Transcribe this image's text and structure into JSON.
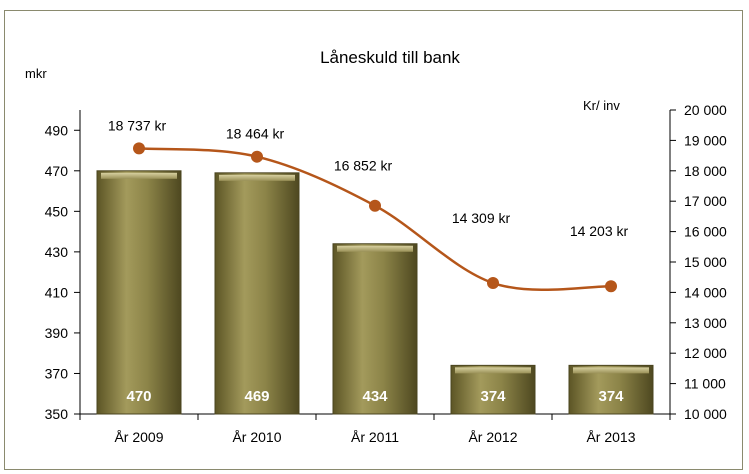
{
  "chart_data": {
    "type": "bar",
    "title": "Låneskuld till bank",
    "left_axis_unit": "mkr",
    "right_axis_unit": "Kr/ inv",
    "categories": [
      "År 2009",
      "År 2010",
      "År 2011",
      "År 2012",
      "År 2013"
    ],
    "bar_values": [
      470,
      469,
      434,
      374,
      374
    ],
    "bar_labels": [
      "470",
      "469",
      "434",
      "374",
      "374"
    ],
    "line_values": [
      18737,
      18464,
      16852,
      14309,
      14203
    ],
    "line_labels": [
      "18 737 kr",
      "18 464 kr",
      "16 852 kr",
      "14 309 kr",
      "14 203 kr"
    ],
    "ylim": [
      350,
      500
    ],
    "y_ticks": [
      "350",
      "370",
      "390",
      "410",
      "430",
      "450",
      "470",
      "490"
    ],
    "y2lim": [
      10000,
      20000
    ],
    "y2_ticks": [
      "10 000",
      "11 000",
      "12 000",
      "13 000",
      "14 000",
      "15 000",
      "16 000",
      "17 000",
      "18 000",
      "19 000",
      "20 000"
    ],
    "bar_color": "#8c8448",
    "line_color": "#b5561a",
    "grid": false,
    "legend": "none"
  }
}
